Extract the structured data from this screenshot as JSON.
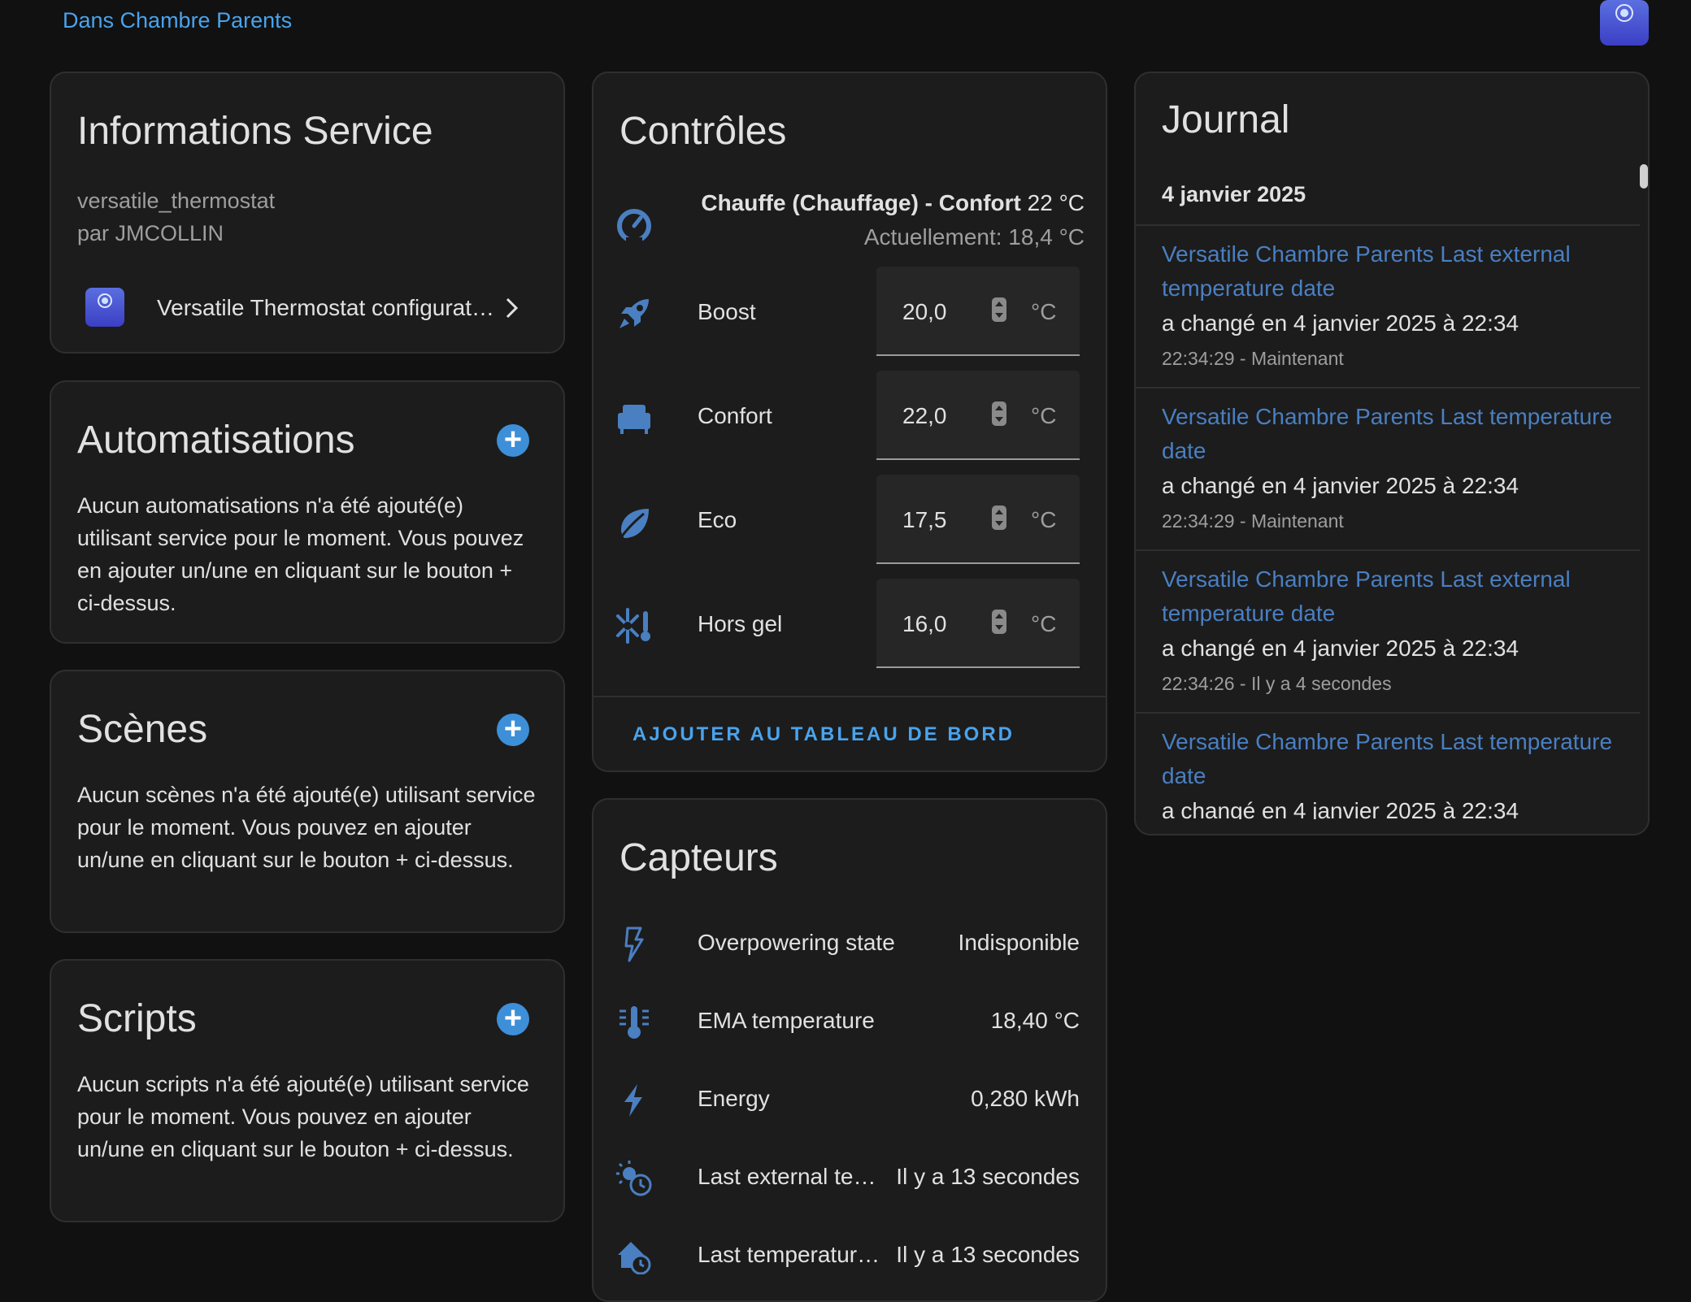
{
  "topbar": {
    "area_link": "Dans Chambre Parents"
  },
  "info": {
    "title": "Informations Service",
    "service_id": "versatile_thermostat",
    "author": "par JMCOLLIN",
    "config_link": "Versatile Thermostat configurat…"
  },
  "automations": {
    "title": "Automatisations",
    "text": "Aucun automatisations n'a été ajouté(e) utilisant service pour le moment. Vous pouvez en ajouter un/une en cliquant sur le bouton + ci-dessus."
  },
  "scenes": {
    "title": "Scènes",
    "text": "Aucun scènes n'a été ajouté(e) utilisant service pour le moment. Vous pouvez en ajouter un/une en cliquant sur le bouton + ci-dessus."
  },
  "scripts": {
    "title": "Scripts",
    "text": "Aucun scripts n'a été ajouté(e) utilisant service pour le moment. Vous pouvez en ajouter un/une en cliquant sur le bouton + ci-dessus."
  },
  "controls": {
    "title": "Contrôles",
    "climate_state": "Chauffe (Chauffage) - Confort",
    "climate_target": "22 °C",
    "climate_current": "Actuellement: 18,4 °C",
    "presets": [
      {
        "label": "Boost",
        "value": "20,0",
        "unit": "°C",
        "icon": "rocket-icon"
      },
      {
        "label": "Confort",
        "value": "22,0",
        "unit": "°C",
        "icon": "sofa-icon"
      },
      {
        "label": "Eco",
        "value": "17,5",
        "unit": "°C",
        "icon": "leaf-icon"
      },
      {
        "label": "Hors gel",
        "value": "16,0",
        "unit": "°C",
        "icon": "snowflake-thermometer-icon"
      }
    ],
    "add_dashboard": "AJOUTER AU TABLEAU DE BORD"
  },
  "sensors": {
    "title": "Capteurs",
    "items": [
      {
        "label": "Overpowering state",
        "value": "Indisponible",
        "icon": "flash-outline-icon"
      },
      {
        "label": "EMA temperature",
        "value": "18,40 °C",
        "icon": "thermometer-lines-icon"
      },
      {
        "label": "Energy",
        "value": "0,280 kWh",
        "icon": "lightning-icon"
      },
      {
        "label": "Last external te…",
        "value": "Il y a 13 secondes",
        "icon": "sun-clock-icon"
      },
      {
        "label": "Last temperatur…",
        "value": "Il y a 13 secondes",
        "icon": "home-clock-icon"
      }
    ]
  },
  "journal": {
    "title": "Journal",
    "date": "4 janvier 2025",
    "entries": [
      {
        "link": "Versatile Chambre Parents Last external temperature date",
        "text": "a changé en 4 janvier 2025 à 22:34",
        "time": "22:34:29 - Maintenant"
      },
      {
        "link": "Versatile Chambre Parents Last temperature date",
        "text": "a changé en 4 janvier 2025 à 22:34",
        "time": "22:34:29 - Maintenant"
      },
      {
        "link": "Versatile Chambre Parents Last external temperature date",
        "text": "a changé en 4 janvier 2025 à 22:34",
        "time": "22:34:26 - Il y a 4 secondes"
      },
      {
        "link": "Versatile Chambre Parents Last temperature date",
        "text": "a changé en 4 janvier 2025 à 22:34",
        "time": ""
      }
    ]
  },
  "colors": {
    "accent": "#4aa3ec",
    "icon": "#4a7fc1",
    "card": "#1c1c1c",
    "background": "#111111"
  }
}
